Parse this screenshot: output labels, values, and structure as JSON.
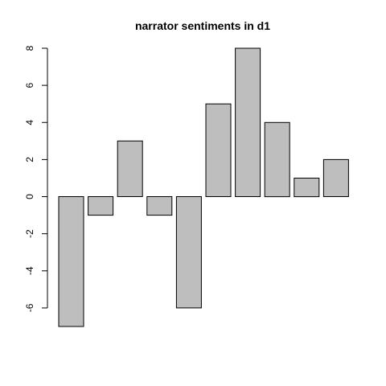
{
  "chart_data": {
    "type": "bar",
    "title": "narrator sentiments in d1",
    "xlabel": "",
    "ylabel": "",
    "values": [
      -7,
      -1,
      3,
      -1,
      -6,
      5,
      8,
      4,
      1,
      2
    ],
    "ylim": [
      -7,
      8
    ],
    "yticks": [
      -6,
      -4,
      -2,
      0,
      2,
      4,
      6,
      8
    ],
    "ytick_labels": [
      "-6",
      "-4",
      "-2",
      "0",
      "2",
      "4",
      "6",
      "8"
    ],
    "grid": false,
    "legend": "none",
    "bar_fill": "#bebebe",
    "bar_stroke": "#000000"
  }
}
